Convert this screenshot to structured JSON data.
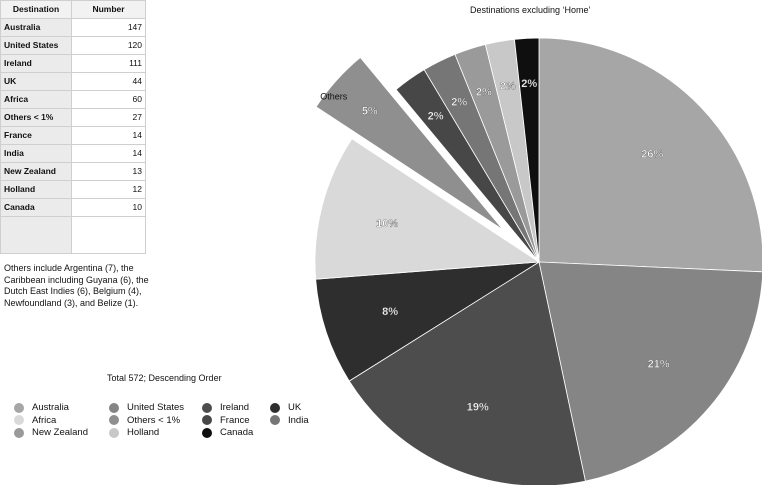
{
  "table": {
    "headers": [
      "Destination",
      "Number"
    ],
    "rows": [
      {
        "destination": "Australia",
        "number": "147"
      },
      {
        "destination": "United States",
        "number": "120"
      },
      {
        "destination": "Ireland",
        "number": "111"
      },
      {
        "destination": "UK",
        "number": "44"
      },
      {
        "destination": "Africa",
        "number": "60"
      },
      {
        "destination": "Others < 1%",
        "number": "27"
      },
      {
        "destination": "France",
        "number": "14"
      },
      {
        "destination": "India",
        "number": "14"
      },
      {
        "destination": "New Zealand",
        "number": "13"
      },
      {
        "destination": "Holland",
        "number": "12"
      },
      {
        "destination": "Canada",
        "number": "10"
      }
    ]
  },
  "note": "Others include Argentina (7), the Caribbean including Guyana (6), the Dutch East Indies (6), Belgium (4), Newfoundland (3), and Belize (1).",
  "total_label": "Total 572; Descending Order",
  "chart_data": {
    "type": "pie",
    "title": "Destinations excluding ‘Home’",
    "exploded": "Others < 1%",
    "exploded_annotation": "Others",
    "slices": [
      {
        "name": "Australia",
        "value": 147,
        "label": "26%",
        "color": "#a6a6a6"
      },
      {
        "name": "United States",
        "value": 120,
        "label": "21%",
        "color": "#858585"
      },
      {
        "name": "Ireland",
        "value": 111,
        "label": "19%",
        "color": "#4d4d4d"
      },
      {
        "name": "UK",
        "value": 44,
        "label": "8%",
        "color": "#2e2e2e"
      },
      {
        "name": "Africa",
        "value": 60,
        "label": "10%",
        "color": "#d9d9d9"
      },
      {
        "name": "Others < 1%",
        "value": 27,
        "label": "5%",
        "color": "#8f8f8f"
      },
      {
        "name": "France",
        "value": 14,
        "label": "2%",
        "color": "#474747"
      },
      {
        "name": "India",
        "value": 14,
        "label": "2%",
        "color": "#767676"
      },
      {
        "name": "New Zealand",
        "value": 13,
        "label": "2%",
        "color": "#9a9a9a"
      },
      {
        "name": "Holland",
        "value": 12,
        "label": "2%",
        "color": "#c8c8c8"
      },
      {
        "name": "Canada",
        "value": 10,
        "label": "2%",
        "color": "#0f0f0f"
      }
    ],
    "legend": [
      "Australia",
      "United States",
      "Ireland",
      "UK",
      "Africa",
      "Others < 1%",
      "France",
      "India",
      "New Zealand",
      "Holland",
      "Canada"
    ]
  }
}
